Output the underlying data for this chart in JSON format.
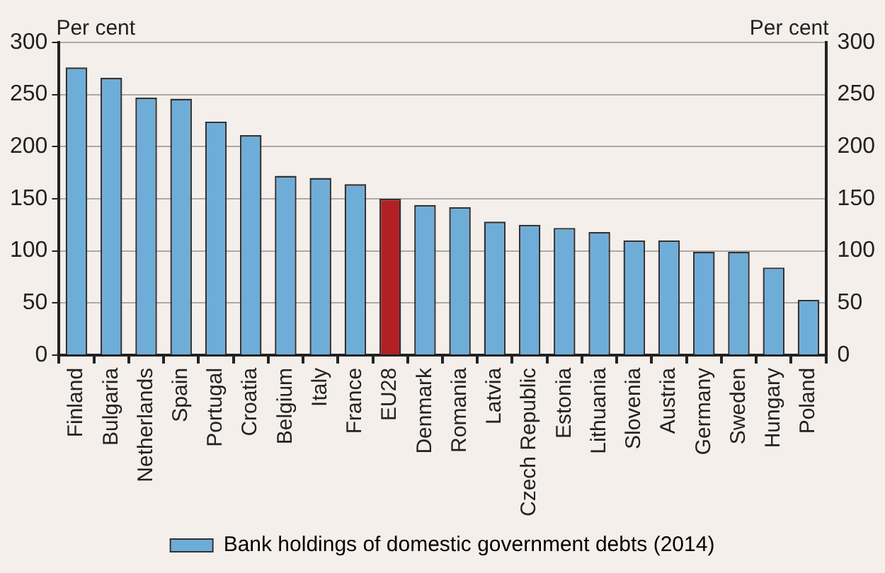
{
  "chart_data": {
    "type": "bar",
    "ylabel": "Per cent",
    "y2label": "Per cent",
    "categories": [
      "Finland",
      "Bulgaria",
      "Netherlands",
      "Spain",
      "Portugal",
      "Croatia",
      "Belgium",
      "Italy",
      "France",
      "EU28",
      "Denmark",
      "Romania",
      "Latvia",
      "Czech Republic",
      "Estonia",
      "Lithuania",
      "Slovenia",
      "Austria",
      "Germany",
      "Sweden",
      "Hungary",
      "Poland"
    ],
    "series": [
      {
        "name": "Bank holdings of domestic government debts (2014)",
        "color": "#6fadd9",
        "colors": [
          "#6fadd9",
          "#6fadd9",
          "#6fadd9",
          "#6fadd9",
          "#6fadd9",
          "#6fadd9",
          "#6fadd9",
          "#6fadd9",
          "#6fadd9",
          "#b22025",
          "#6fadd9",
          "#6fadd9",
          "#6fadd9",
          "#6fadd9",
          "#6fadd9",
          "#6fadd9",
          "#6fadd9",
          "#6fadd9",
          "#6fadd9",
          "#6fadd9",
          "#6fadd9",
          "#6fadd9"
        ],
        "values": [
          276,
          266,
          247,
          246,
          224,
          211,
          172,
          170,
          164,
          150,
          144,
          142,
          128,
          125,
          122,
          118,
          110,
          110,
          99,
          99,
          84,
          53
        ]
      }
    ],
    "ylim": [
      0,
      300
    ],
    "yticks": [
      0,
      50,
      100,
      150,
      200,
      250,
      300
    ],
    "y2lim": [
      0,
      300
    ],
    "y2ticks": [
      0,
      50,
      100,
      150,
      200,
      250,
      300
    ],
    "grid": "y",
    "legend": "bottom"
  }
}
